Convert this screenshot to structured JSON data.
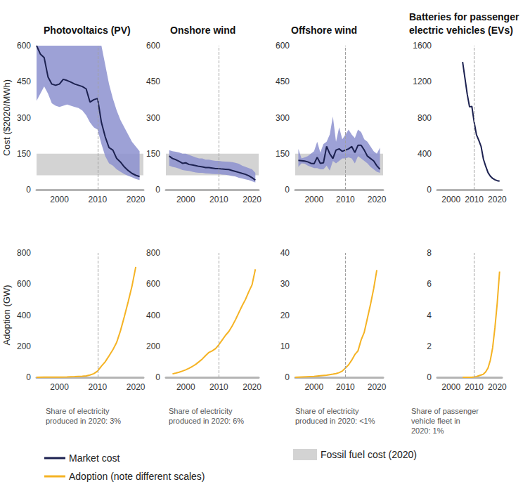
{
  "chart_data": [
    {
      "type": "line",
      "title": "Photovoltaics (PV)",
      "y_label": "Cost ($2020/MWh)",
      "x": [
        1994,
        1995,
        1996,
        1997,
        1998,
        1999,
        2000,
        2001,
        2002,
        2003,
        2004,
        2005,
        2006,
        2007,
        2008,
        2009,
        2010,
        2011,
        2012,
        2013,
        2014,
        2015,
        2016,
        2017,
        2018,
        2019,
        2020,
        2021
      ],
      "xlim": [
        1994,
        2022
      ],
      "xticks": [
        2000,
        2010,
        2020
      ],
      "ylim": [
        0,
        600
      ],
      "yticks": [
        0,
        150,
        300,
        450,
        600
      ],
      "grid": false,
      "legend": "bottom",
      "reference_x": 2010,
      "fossil_band": {
        "name": "Fossil fuel cost (2020)",
        "color": "#d3d3d3",
        "values": [
          60,
          150
        ]
      },
      "series": [
        {
          "name": "Market cost",
          "color": "#1c2150",
          "values": [
            600,
            565,
            550,
            470,
            440,
            435,
            440,
            460,
            455,
            448,
            440,
            435,
            430,
            420,
            365,
            375,
            380,
            280,
            220,
            175,
            165,
            130,
            115,
            95,
            80,
            68,
            60,
            55
          ],
          "upper": [
            600,
            600,
            600,
            600,
            600,
            600,
            600,
            600,
            600,
            600,
            600,
            600,
            600,
            600,
            600,
            600,
            600,
            600,
            520,
            440,
            380,
            330,
            290,
            260,
            230,
            200,
            180,
            160
          ],
          "lower": [
            370,
            400,
            430,
            400,
            360,
            350,
            345,
            350,
            355,
            350,
            345,
            340,
            330,
            310,
            280,
            260,
            250,
            190,
            140,
            110,
            100,
            85,
            75,
            65,
            58,
            52,
            45,
            40
          ]
        }
      ]
    },
    {
      "type": "line",
      "title": "Onshore wind",
      "x": [
        1995,
        1996,
        1997,
        1998,
        1999,
        2000,
        2001,
        2002,
        2003,
        2004,
        2005,
        2006,
        2007,
        2008,
        2009,
        2010,
        2011,
        2012,
        2013,
        2014,
        2015,
        2016,
        2017,
        2018,
        2019,
        2020,
        2021
      ],
      "xlim": [
        1994,
        2022
      ],
      "xticks": [
        2000,
        2010,
        2020
      ],
      "ylim": [
        0,
        600
      ],
      "yticks": [
        0,
        150,
        300,
        450,
        600
      ],
      "grid": false,
      "legend": "bottom",
      "reference_x": 2010,
      "fossil_band": {
        "name": "Fossil fuel cost (2020)",
        "color": "#d3d3d3",
        "values": [
          60,
          150
        ]
      },
      "series": [
        {
          "name": "Market cost",
          "color": "#1c2150",
          "values": [
            140,
            130,
            125,
            118,
            110,
            112,
            105,
            103,
            100,
            97,
            95,
            92,
            92,
            90,
            88,
            88,
            86,
            85,
            84,
            80,
            76,
            72,
            68,
            64,
            58,
            50,
            40
          ],
          "upper": [
            165,
            160,
            158,
            155,
            150,
            150,
            145,
            140,
            135,
            130,
            130,
            125,
            125,
            122,
            120,
            120,
            118,
            117,
            116,
            115,
            112,
            108,
            100,
            95,
            90,
            85,
            70
          ],
          "lower": [
            100,
            95,
            92,
            88,
            82,
            80,
            78,
            75,
            72,
            70,
            70,
            68,
            67,
            66,
            65,
            65,
            63,
            62,
            60,
            57,
            55,
            50,
            47,
            43,
            40,
            35,
            30
          ]
        }
      ]
    },
    {
      "type": "line",
      "title": "Offshore wind",
      "x": [
        1995,
        1996,
        1997,
        1998,
        1999,
        2000,
        2001,
        2002,
        2003,
        2004,
        2005,
        2006,
        2007,
        2008,
        2009,
        2010,
        2011,
        2012,
        2013,
        2014,
        2015,
        2016,
        2017,
        2018,
        2019,
        2020,
        2021
      ],
      "xlim": [
        1994,
        2022
      ],
      "xticks": [
        2000,
        2010,
        2020
      ],
      "ylim": [
        0,
        600
      ],
      "yticks": [
        0,
        150,
        300,
        450,
        600
      ],
      "grid": false,
      "legend": "bottom",
      "reference_x": 2010,
      "fossil_band": {
        "name": "Fossil fuel cost (2020)",
        "color": "#d3d3d3",
        "values": [
          60,
          150
        ]
      },
      "series": [
        {
          "name": "Market cost",
          "color": "#1c2150",
          "values": [
            122,
            121,
            119,
            116,
            110,
            108,
            135,
            110,
            112,
            180,
            150,
            130,
            165,
            170,
            160,
            165,
            170,
            180,
            155,
            185,
            185,
            165,
            140,
            130,
            120,
            100,
            85
          ],
          "upper": [
            170,
            130,
            135,
            140,
            150,
            160,
            200,
            155,
            190,
            200,
            230,
            305,
            200,
            260,
            210,
            230,
            250,
            230,
            215,
            250,
            240,
            210,
            200,
            180,
            160,
            150,
            175
          ],
          "lower": [
            95,
            110,
            108,
            100,
            95,
            90,
            90,
            85,
            85,
            100,
            80,
            120,
            110,
            120,
            130,
            130,
            135,
            130,
            110,
            140,
            130,
            120,
            110,
            95,
            85,
            75,
            70
          ]
        }
      ]
    },
    {
      "type": "line",
      "title": "Batteries for passenger electric vehicles (EVs)",
      "x": [
        2005,
        2006,
        2007,
        2008,
        2009,
        2010,
        2011,
        2012,
        2013,
        2014,
        2015,
        2016,
        2017,
        2018,
        2019,
        2020,
        2021
      ],
      "xlim": [
        1994,
        2022
      ],
      "xticks": [
        2000,
        2010,
        2020
      ],
      "ylim": [
        0,
        1600
      ],
      "yticks": [
        0,
        400,
        800,
        1200,
        1600
      ],
      "grid": false,
      "legend": "bottom",
      "reference_x": 2010,
      "series": [
        {
          "name": "Market cost",
          "color": "#1c2150",
          "values": [
            1420,
            1240,
            1060,
            920,
            925,
            750,
            610,
            550,
            480,
            340,
            260,
            190,
            150,
            125,
            110,
            100,
            95
          ]
        }
      ]
    },
    {
      "type": "line",
      "y_label": "Adoption (GW)",
      "note": "Share of electricity produced in 2020: 3%",
      "x": [
        1994,
        1996,
        1998,
        2000,
        2002,
        2004,
        2006,
        2007,
        2008,
        2009,
        2010,
        2011,
        2012,
        2013,
        2014,
        2015,
        2016,
        2017,
        2018,
        2019,
        2020
      ],
      "xlim": [
        1994,
        2022
      ],
      "xticks": [
        2000,
        2010,
        2020
      ],
      "ylim": [
        0,
        800
      ],
      "yticks": [
        0,
        200,
        400,
        600,
        800
      ],
      "grid": false,
      "legend": "bottom",
      "reference_x": 2010,
      "series": [
        {
          "name": "Adoption (note different scales)",
          "color": "#f5b324",
          "values": [
            0,
            1,
            1,
            1,
            2,
            4,
            7,
            9,
            15,
            23,
            40,
            72,
            100,
            138,
            177,
            225,
            300,
            390,
            485,
            585,
            710
          ]
        }
      ]
    },
    {
      "type": "line",
      "note": "Share of electricity produced in 2020: 6%",
      "x": [
        1996,
        1997,
        1998,
        1999,
        2000,
        2001,
        2002,
        2003,
        2004,
        2005,
        2006,
        2007,
        2008,
        2009,
        2010,
        2011,
        2012,
        2013,
        2014,
        2015,
        2016,
        2017,
        2018,
        2019,
        2020,
        2021
      ],
      "xlim": [
        1994,
        2022
      ],
      "xticks": [
        2000,
        2010,
        2020
      ],
      "ylim": [
        0,
        800
      ],
      "yticks": [
        0,
        200,
        400,
        600,
        800
      ],
      "grid": false,
      "legend": "bottom",
      "reference_x": 2010,
      "series": [
        {
          "name": "Adoption (note different scales)",
          "color": "#f5b324",
          "values": [
            22,
            27,
            33,
            40,
            48,
            58,
            70,
            83,
            100,
            118,
            140,
            160,
            170,
            185,
            210,
            240,
            270,
            295,
            330,
            370,
            415,
            460,
            500,
            550,
            595,
            695
          ]
        }
      ]
    },
    {
      "type": "line",
      "note": "Share of electricity produced in 2020: <1%",
      "x": [
        1994,
        2000,
        2002,
        2004,
        2006,
        2007,
        2008,
        2009,
        2010,
        2011,
        2012,
        2013,
        2014,
        2015,
        2016,
        2017,
        2018,
        2019,
        2020
      ],
      "xlim": [
        1994,
        2022
      ],
      "xticks": [
        2000,
        2010,
        2020
      ],
      "ylim": [
        0,
        40
      ],
      "yticks": [
        0,
        10,
        20,
        30,
        40
      ],
      "grid": false,
      "legend": "bottom",
      "reference_x": 2010,
      "series": [
        {
          "name": "Adoption (note different scales)",
          "color": "#f5b324",
          "values": [
            0,
            0.3,
            0.5,
            0.7,
            1,
            1.2,
            1.5,
            2,
            3,
            4,
            5.5,
            7.3,
            8.5,
            12,
            14.5,
            19,
            23.5,
            28.5,
            34.5
          ]
        }
      ]
    },
    {
      "type": "line",
      "note": "Share of passenger vehicle fleet in 2020: 1%",
      "x": [
        2005,
        2006,
        2007,
        2008,
        2009,
        2010,
        2011,
        2012,
        2013,
        2014,
        2015,
        2016,
        2017,
        2018,
        2019,
        2020,
        2021
      ],
      "xlim": [
        1994,
        2022
      ],
      "xticks": [
        2000,
        2010,
        2020
      ],
      "ylim": [
        0,
        8
      ],
      "yticks": [
        0,
        2,
        4,
        6,
        8
      ],
      "grid": false,
      "legend": "bottom",
      "reference_x": 2010,
      "series": [
        {
          "name": "Adoption (note different scales)",
          "color": "#f5b324",
          "values": [
            0,
            0,
            0,
            0,
            0,
            0.02,
            0.05,
            0.1,
            0.15,
            0.2,
            0.35,
            0.6,
            1.1,
            1.9,
            3.2,
            4.8,
            6.8
          ]
        }
      ]
    }
  ]
}
